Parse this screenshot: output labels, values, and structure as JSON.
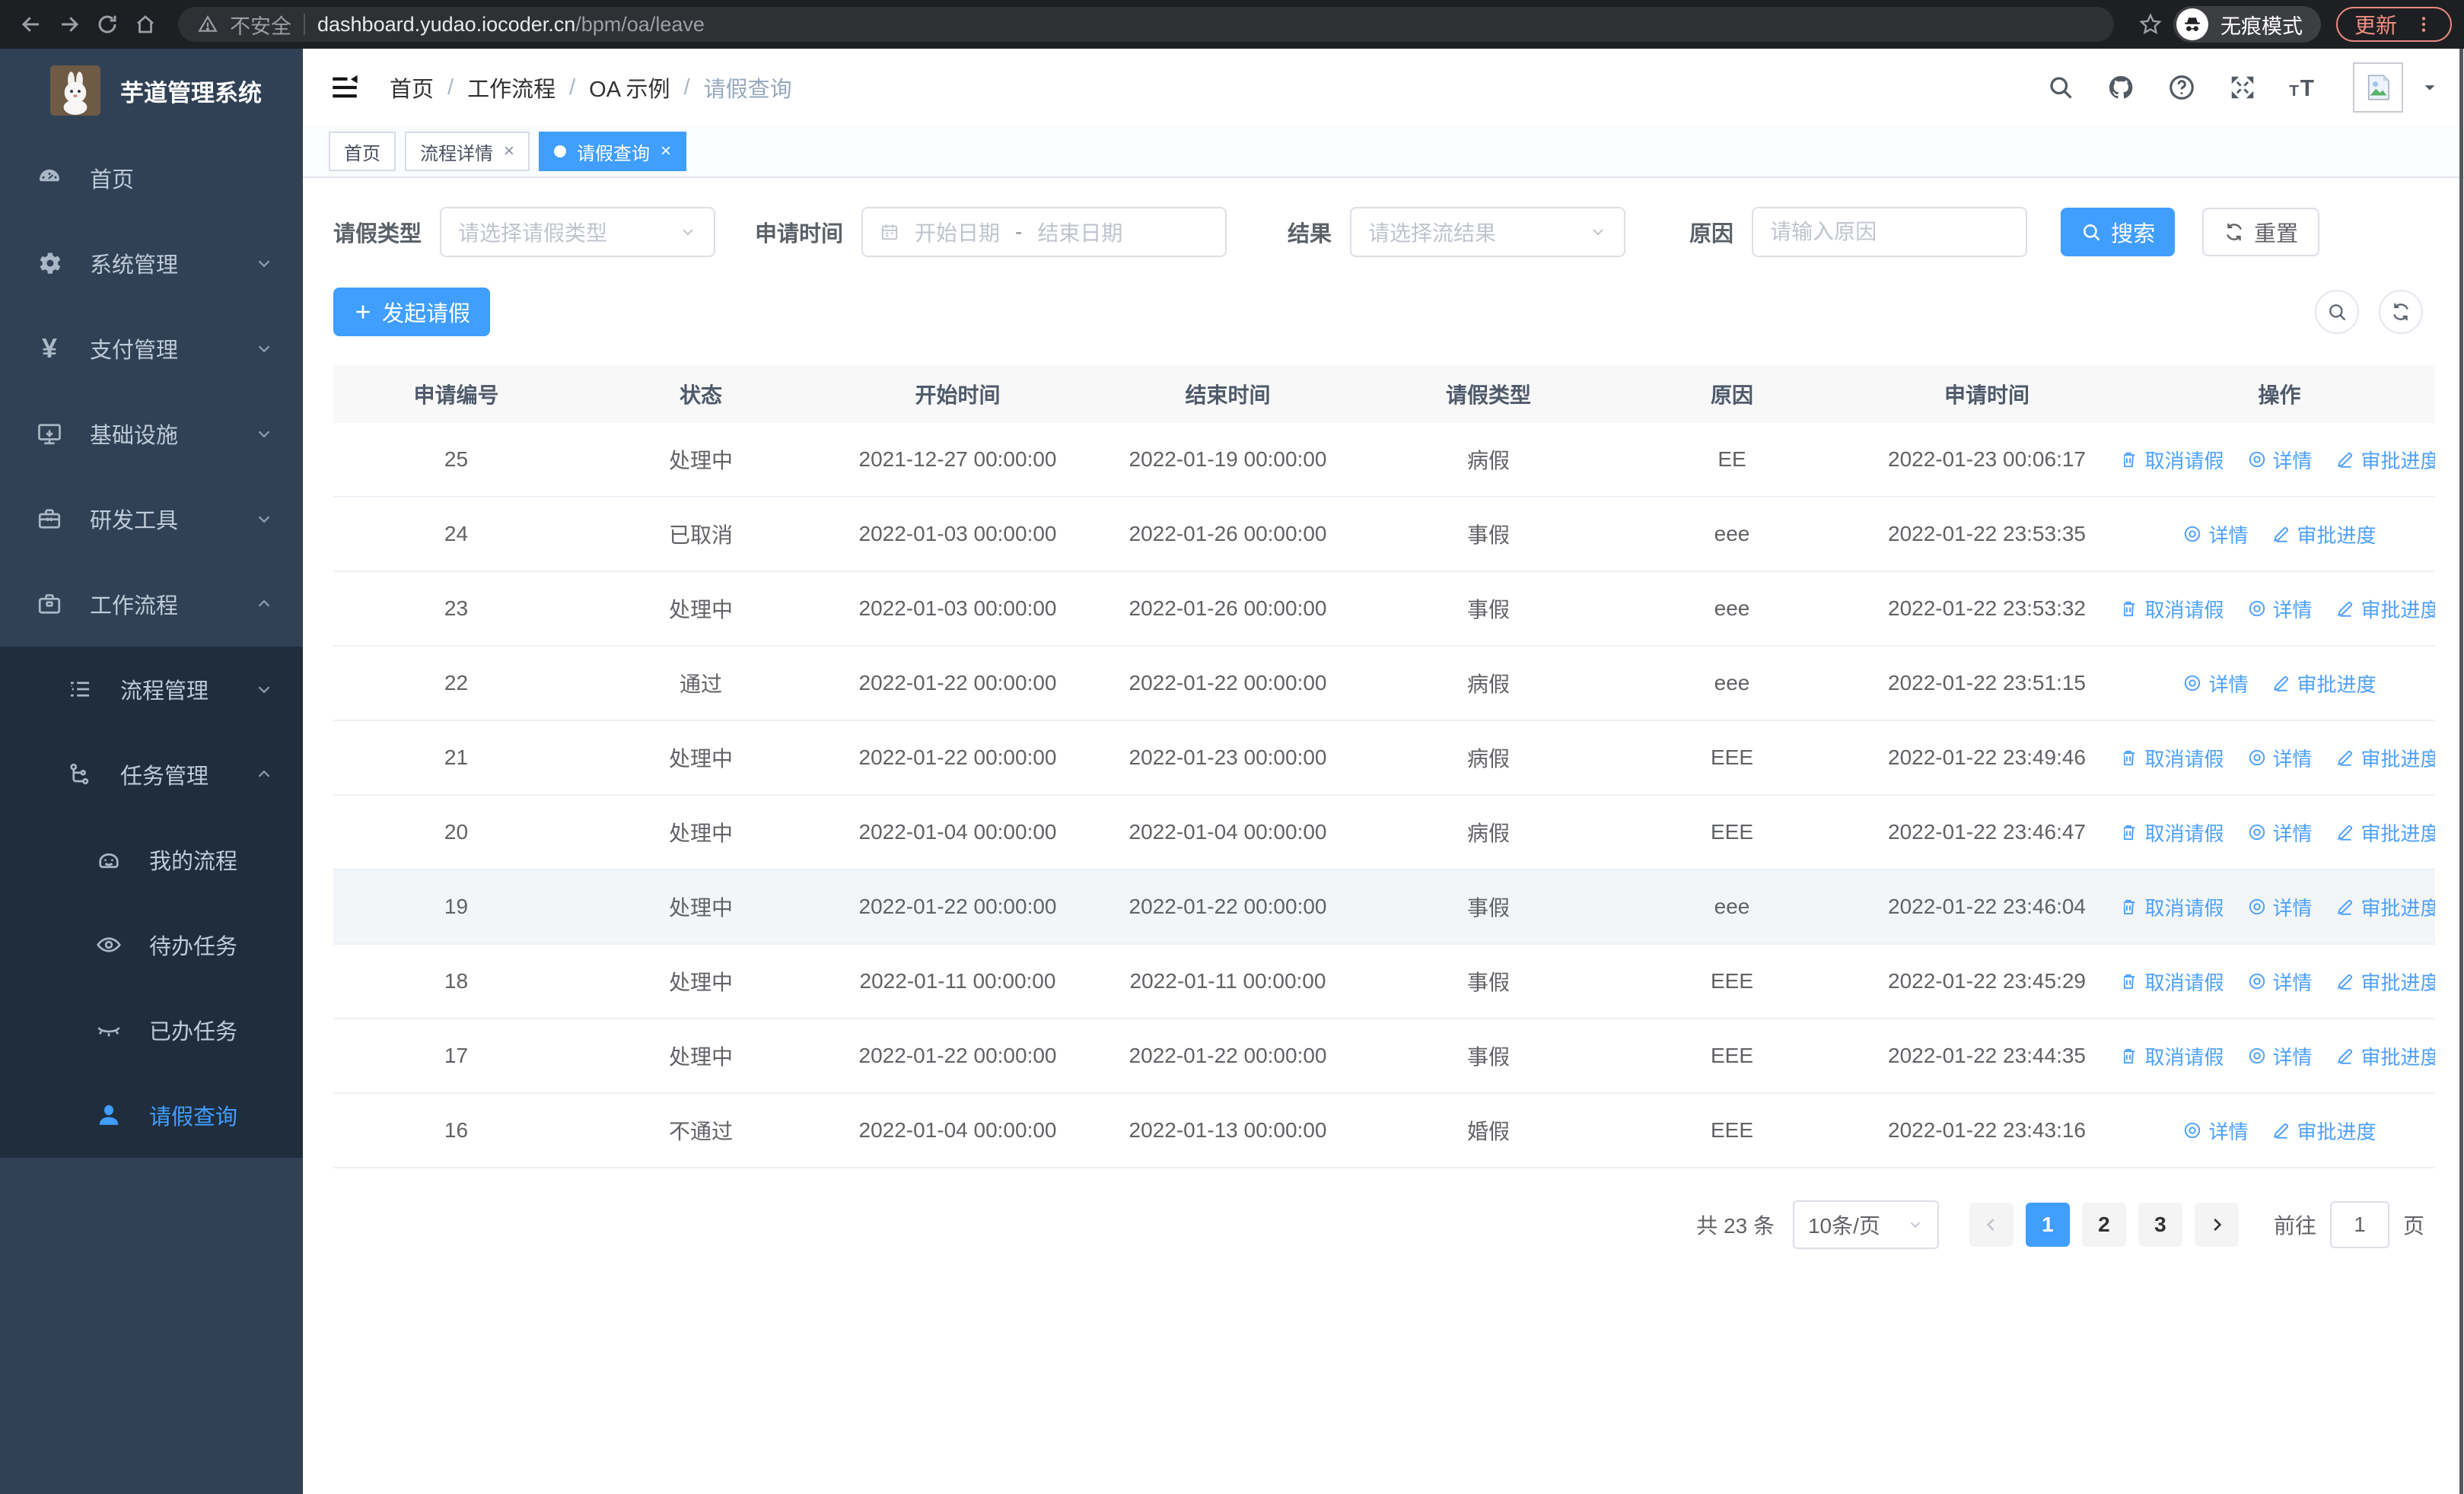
{
  "browser": {
    "security_label": "不安全",
    "url_host": "dashboard.yudao.iocoder.cn",
    "url_path": "/bpm/oa/leave",
    "incognito_label": "无痕模式",
    "update_label": "更新"
  },
  "sidebar": {
    "logo_title": "芋道管理系统",
    "menu": [
      {
        "label": "首页",
        "icon": "dashboard-icon",
        "level": 0,
        "arrow": null,
        "active": false,
        "submenu": false
      },
      {
        "label": "系统管理",
        "icon": "gear-icon",
        "level": 0,
        "arrow": "down",
        "active": false,
        "submenu": false
      },
      {
        "label": "支付管理",
        "icon": "yen-icon",
        "level": 0,
        "arrow": "down",
        "active": false,
        "submenu": false
      },
      {
        "label": "基础设施",
        "icon": "monitor-icon",
        "level": 0,
        "arrow": "down",
        "active": false,
        "submenu": false
      },
      {
        "label": "研发工具",
        "icon": "toolbox-icon",
        "level": 0,
        "arrow": "down",
        "active": false,
        "submenu": false
      },
      {
        "label": "工作流程",
        "icon": "briefcase-icon",
        "level": 0,
        "arrow": "up",
        "active": false,
        "submenu": false
      },
      {
        "label": "流程管理",
        "icon": "list-icon",
        "level": 1,
        "arrow": "down",
        "active": false,
        "submenu": true
      },
      {
        "label": "任务管理",
        "icon": "flow-icon",
        "level": 1,
        "arrow": "up",
        "active": false,
        "submenu": true
      },
      {
        "label": "我的流程",
        "icon": "robot-icon",
        "level": 2,
        "arrow": null,
        "active": false,
        "submenu": true
      },
      {
        "label": "待办任务",
        "icon": "eye-icon",
        "level": 2,
        "arrow": null,
        "active": false,
        "submenu": true
      },
      {
        "label": "已办任务",
        "icon": "eye-closed-icon",
        "level": 2,
        "arrow": null,
        "active": false,
        "submenu": true
      },
      {
        "label": "请假查询",
        "icon": "user-icon",
        "level": 2,
        "arrow": null,
        "active": true,
        "submenu": true
      }
    ]
  },
  "navbar": {
    "breadcrumb": [
      "首页",
      "工作流程",
      "OA 示例",
      "请假查询"
    ],
    "breadcrumb_separator": "/"
  },
  "tabs": [
    {
      "label": "首页",
      "closable": false,
      "active": false
    },
    {
      "label": "流程详情",
      "closable": true,
      "active": false
    },
    {
      "label": "请假查询",
      "closable": true,
      "active": true
    }
  ],
  "filters": {
    "type_label": "请假类型",
    "type_placeholder": "请选择请假类型",
    "time_label": "申请时间",
    "start_placeholder": "开始日期",
    "range_separator": "-",
    "end_placeholder": "结束日期",
    "result_label": "结果",
    "result_placeholder": "请选择流结果",
    "reason_label": "原因",
    "reason_placeholder": "请输入原因",
    "search_label": "搜索",
    "reset_label": "重置"
  },
  "toolbar": {
    "create_label": "发起请假"
  },
  "table": {
    "columns": [
      "申请编号",
      "状态",
      "开始时间",
      "结束时间",
      "请假类型",
      "原因",
      "申请时间",
      "操作"
    ],
    "action_labels": {
      "cancel": "取消请假",
      "detail": "详情",
      "progress": "审批进度"
    },
    "rows": [
      {
        "id": "25",
        "status": "处理中",
        "start": "2021-12-27 00:00:00",
        "end": "2022-01-19 00:00:00",
        "type": "病假",
        "reason": "EE",
        "apply_time": "2022-01-23 00:06:17",
        "actions": [
          "cancel",
          "detail",
          "progress"
        ],
        "hover": false
      },
      {
        "id": "24",
        "status": "已取消",
        "start": "2022-01-03 00:00:00",
        "end": "2022-01-26 00:00:00",
        "type": "事假",
        "reason": "eee",
        "apply_time": "2022-01-22 23:53:35",
        "actions": [
          "detail",
          "progress"
        ],
        "hover": false
      },
      {
        "id": "23",
        "status": "处理中",
        "start": "2022-01-03 00:00:00",
        "end": "2022-01-26 00:00:00",
        "type": "事假",
        "reason": "eee",
        "apply_time": "2022-01-22 23:53:32",
        "actions": [
          "cancel",
          "detail",
          "progress"
        ],
        "hover": false
      },
      {
        "id": "22",
        "status": "通过",
        "start": "2022-01-22 00:00:00",
        "end": "2022-01-22 00:00:00",
        "type": "病假",
        "reason": "eee",
        "apply_time": "2022-01-22 23:51:15",
        "actions": [
          "detail",
          "progress"
        ],
        "hover": false
      },
      {
        "id": "21",
        "status": "处理中",
        "start": "2022-01-22 00:00:00",
        "end": "2022-01-23 00:00:00",
        "type": "病假",
        "reason": "EEE",
        "apply_time": "2022-01-22 23:49:46",
        "actions": [
          "cancel",
          "detail",
          "progress"
        ],
        "hover": false
      },
      {
        "id": "20",
        "status": "处理中",
        "start": "2022-01-04 00:00:00",
        "end": "2022-01-04 00:00:00",
        "type": "病假",
        "reason": "EEE",
        "apply_time": "2022-01-22 23:46:47",
        "actions": [
          "cancel",
          "detail",
          "progress"
        ],
        "hover": false
      },
      {
        "id": "19",
        "status": "处理中",
        "start": "2022-01-22 00:00:00",
        "end": "2022-01-22 00:00:00",
        "type": "事假",
        "reason": "eee",
        "apply_time": "2022-01-22 23:46:04",
        "actions": [
          "cancel",
          "detail",
          "progress"
        ],
        "hover": true
      },
      {
        "id": "18",
        "status": "处理中",
        "start": "2022-01-11 00:00:00",
        "end": "2022-01-11 00:00:00",
        "type": "事假",
        "reason": "EEE",
        "apply_time": "2022-01-22 23:45:29",
        "actions": [
          "cancel",
          "detail",
          "progress"
        ],
        "hover": false
      },
      {
        "id": "17",
        "status": "处理中",
        "start": "2022-01-22 00:00:00",
        "end": "2022-01-22 00:00:00",
        "type": "事假",
        "reason": "EEE",
        "apply_time": "2022-01-22 23:44:35",
        "actions": [
          "cancel",
          "detail",
          "progress"
        ],
        "hover": false
      },
      {
        "id": "16",
        "status": "不通过",
        "start": "2022-01-04 00:00:00",
        "end": "2022-01-13 00:00:00",
        "type": "婚假",
        "reason": "EEE",
        "apply_time": "2022-01-22 23:43:16",
        "actions": [
          "detail",
          "progress"
        ],
        "hover": false
      }
    ]
  },
  "pagination": {
    "total_label": "共 23 条",
    "page_size_label": "10条/页",
    "pages": [
      "1",
      "2",
      "3"
    ],
    "active_page": "1",
    "goto_label": "前往",
    "goto_value": "1",
    "page_unit_label": "页"
  },
  "colors": {
    "accent": "#409eff",
    "sidebar_bg": "#304156",
    "submenu_bg": "#1f2d3d",
    "link_blue": "#4da0fa",
    "update_pill": "#ef8f84"
  },
  "icons": {
    "back-icon": "←",
    "forward-icon": "→",
    "reload-icon": "⟳",
    "home-icon": "⌂",
    "warning-icon": "▲",
    "star-icon": "☆",
    "incognito-icon": "🕶",
    "more-vertical-icon": "⋮",
    "fold-icon": "≡",
    "search-icon": "⌕",
    "github-icon": "◉",
    "help-icon": "?",
    "fullscreen-icon": "⛶",
    "fontsize-icon": "tT",
    "caret-down-icon": "▼",
    "calendar-icon": "▦",
    "chevron-down-icon": "∨",
    "chevron-up-icon": "∧",
    "plus-icon": "+",
    "refresh-icon": "⟳",
    "delete-icon": "🗑",
    "view-icon": "◎",
    "edit-icon": "✎",
    "arrow-left-icon": "‹",
    "arrow-right-icon": "›",
    "dashboard-icon": "◔",
    "gear-icon": "⚙",
    "yen-icon": "¥",
    "monitor-icon": "🖵",
    "toolbox-icon": "🧰",
    "briefcase-icon": "💼",
    "list-icon": "☰",
    "flow-icon": "⎇",
    "robot-icon": "🤖",
    "eye-icon": "👁",
    "eye-closed-icon": "😌",
    "user-icon": "👤"
  }
}
